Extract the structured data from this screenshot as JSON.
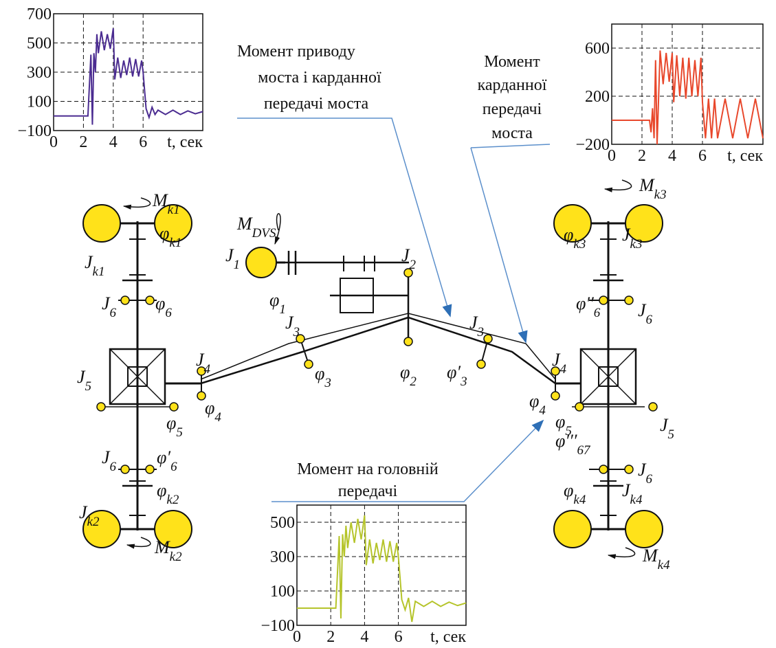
{
  "annotations": [
    {
      "lines": [
        "Момент приводу",
        "моста і карданної",
        "передачі моста"
      ]
    },
    {
      "lines": [
        "Момент",
        "карданної",
        "передачі",
        "моста"
      ]
    },
    {
      "lines": [
        "Момент на головній",
        "передачі"
      ]
    }
  ],
  "labels": [
    {
      "symbol": "M",
      "sub": "k1"
    },
    {
      "symbol": "J",
      "sub": "k1"
    },
    {
      "symbol": "φ",
      "sub": "k1"
    },
    {
      "symbol": "M",
      "sub": "DVS"
    },
    {
      "symbol": "J",
      "sub": "1"
    },
    {
      "symbol": "φ",
      "sub": "1"
    },
    {
      "symbol": "J",
      "sub": "2"
    },
    {
      "symbol": "φ",
      "sub": "2"
    },
    {
      "symbol": "J",
      "sub": "3"
    },
    {
      "symbol": "φ",
      "sub": "3"
    },
    {
      "symbol": "J",
      "sub": "3"
    },
    {
      "symbol": "φ′",
      "sub": "3"
    },
    {
      "symbol": "J",
      "sub": "4"
    },
    {
      "symbol": "φ",
      "sub": "4"
    },
    {
      "symbol": "J",
      "sub": "4"
    },
    {
      "symbol": "φ",
      "sub": "4"
    },
    {
      "symbol": "J",
      "sub": "5"
    },
    {
      "symbol": "φ",
      "sub": "5"
    },
    {
      "symbol": "J",
      "sub": "5"
    },
    {
      "symbol": "φ",
      "sub": "5"
    },
    {
      "symbol": "J",
      "sub": "6"
    },
    {
      "symbol": "φ",
      "sub": "6"
    },
    {
      "symbol": "J",
      "sub": "6"
    },
    {
      "symbol": "φ′",
      "sub": "6"
    },
    {
      "symbol": "φ′′",
      "sub": "6"
    },
    {
      "symbol": "J",
      "sub": "6"
    },
    {
      "symbol": "φ′′′",
      "sub": "67"
    },
    {
      "symbol": "J",
      "sub": "6"
    },
    {
      "symbol": "J",
      "sub": "k2"
    },
    {
      "symbol": "φ",
      "sub": "k2"
    },
    {
      "symbol": "M",
      "sub": "k2"
    },
    {
      "symbol": "J",
      "sub": "k3"
    },
    {
      "symbol": "φ",
      "sub": "k3"
    },
    {
      "symbol": "M",
      "sub": "k3"
    },
    {
      "symbol": "J",
      "sub": "k4"
    },
    {
      "symbol": "φ",
      "sub": "k4"
    },
    {
      "symbol": "M",
      "sub": "k4"
    }
  ],
  "charts": [
    {
      "type": "line",
      "color": "#4b2c91",
      "xlabel": "t, сек",
      "xlim": [
        0,
        10
      ],
      "ylim": [
        -100,
        700
      ],
      "xticks": [
        0,
        2,
        4,
        6
      ],
      "yticks": [
        700,
        500,
        300,
        100,
        {
          "value": -100,
          "label": "−100"
        }
      ],
      "x": [
        0,
        2.3,
        2.5,
        2.6,
        2.7,
        2.8,
        2.9,
        3.0,
        3.2,
        3.4,
        3.6,
        3.8,
        4.0,
        4.1,
        4.3,
        4.5,
        4.7,
        4.9,
        5.1,
        5.3,
        5.5,
        5.7,
        5.9,
        6.0,
        6.2,
        6.4,
        6.6,
        6.8,
        7.0,
        7.5,
        8,
        8.5,
        9,
        9.5,
        10
      ],
      "values": [
        0,
        0,
        420,
        -60,
        430,
        300,
        560,
        430,
        580,
        450,
        560,
        460,
        600,
        250,
        400,
        260,
        380,
        280,
        400,
        270,
        390,
        270,
        380,
        300,
        50,
        -10,
        60,
        10,
        40,
        10,
        40,
        10,
        35,
        15,
        30
      ]
    },
    {
      "type": "line",
      "color": "#e8472b",
      "xlabel": "t, сек",
      "xlim": [
        0,
        10
      ],
      "ylim": [
        -200,
        800
      ],
      "xticks": [
        0,
        2,
        4,
        6
      ],
      "yticks": [
        600,
        200,
        {
          "value": -200,
          "label": "−200"
        }
      ],
      "x": [
        0,
        2.3,
        2.5,
        2.6,
        2.7,
        2.8,
        2.9,
        3.0,
        3.2,
        3.4,
        3.6,
        3.8,
        4.0,
        4.1,
        4.3,
        4.5,
        4.7,
        4.9,
        5.1,
        5.3,
        5.5,
        5.7,
        5.9,
        6.0,
        6.2,
        6.4,
        6.6,
        6.8,
        7.0,
        7.5,
        8,
        8.5,
        9,
        9.5,
        10
      ],
      "values": [
        0,
        0,
        0,
        -100,
        100,
        -150,
        500,
        -200,
        580,
        300,
        560,
        320,
        560,
        150,
        540,
        200,
        520,
        180,
        520,
        200,
        500,
        200,
        520,
        150,
        -150,
        180,
        -150,
        180,
        -150,
        180,
        -150,
        180,
        -150,
        180,
        -150
      ]
    },
    {
      "type": "line",
      "color": "#b5c42a",
      "xlabel": "t, сек",
      "xlim": [
        0,
        10
      ],
      "ylim": [
        -100,
        600
      ],
      "xticks": [
        0,
        2,
        4,
        6
      ],
      "yticks": [
        500,
        300,
        100,
        {
          "value": -100,
          "label": "−100"
        }
      ],
      "x": [
        0,
        2.3,
        2.5,
        2.6,
        2.7,
        2.8,
        2.9,
        3.0,
        3.2,
        3.4,
        3.6,
        3.8,
        4.0,
        4.1,
        4.3,
        4.5,
        4.7,
        4.9,
        5.1,
        5.3,
        5.5,
        5.7,
        5.9,
        6.0,
        6.2,
        6.4,
        6.6,
        6.8,
        7.0,
        7.5,
        8,
        8.5,
        9,
        9.5,
        10
      ],
      "values": [
        0,
        0,
        420,
        -60,
        430,
        300,
        480,
        350,
        500,
        380,
        520,
        400,
        540,
        250,
        400,
        260,
        380,
        280,
        400,
        270,
        390,
        270,
        380,
        300,
        50,
        -10,
        60,
        -80,
        40,
        10,
        40,
        10,
        35,
        15,
        30
      ]
    }
  ]
}
